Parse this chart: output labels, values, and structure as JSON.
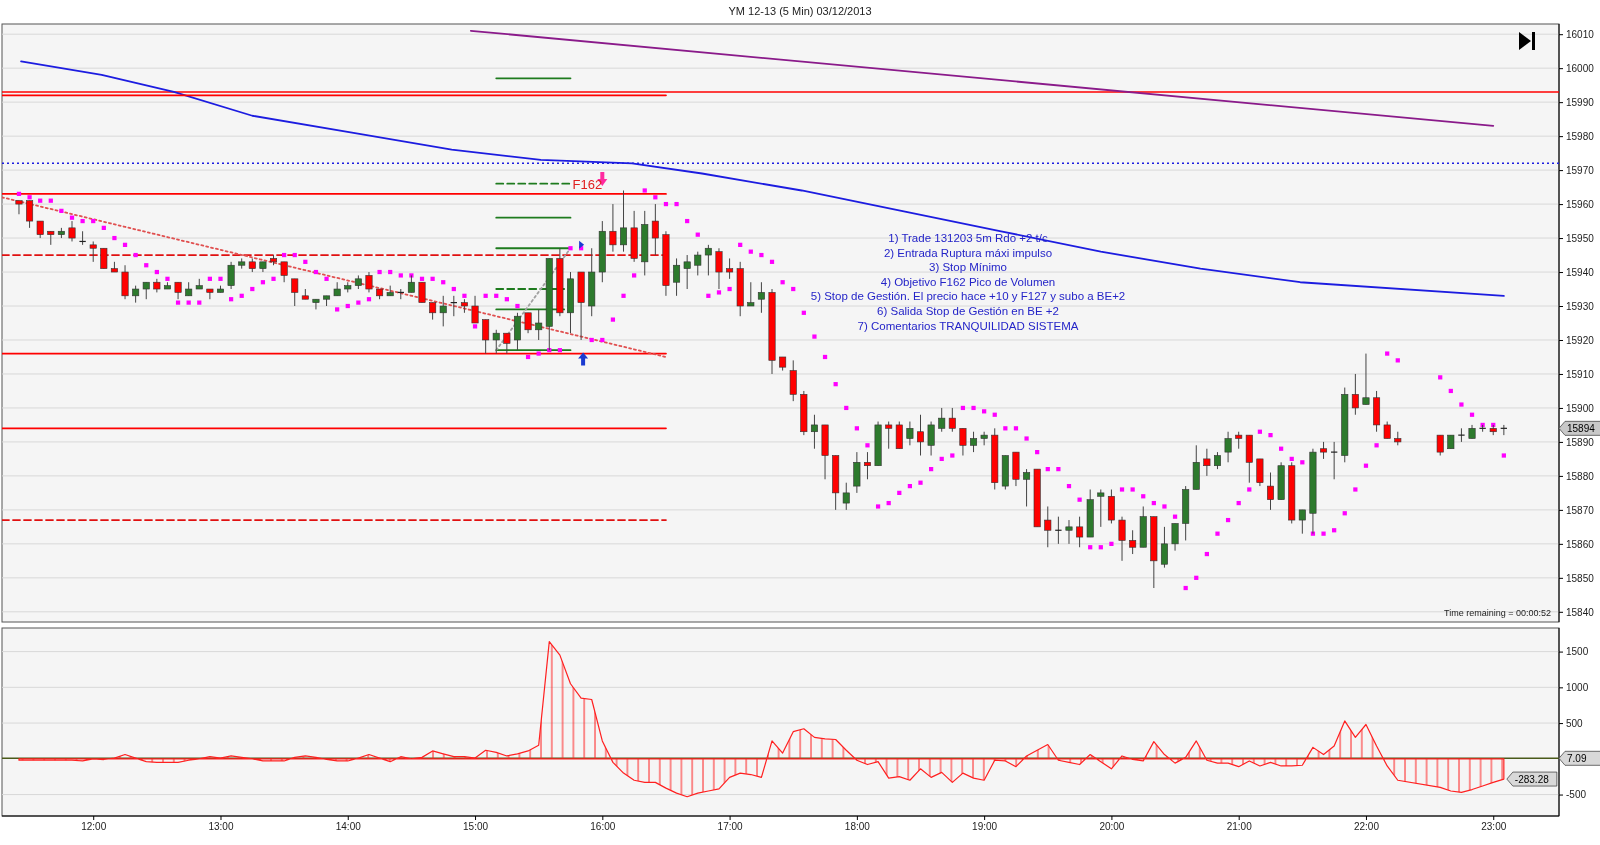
{
  "chart_data": [
    {
      "type": "candlestick",
      "title": "YM 12-13 (5 Min)  03/12/2013",
      "x": [
        "2013-12-03T11:25",
        "2013-12-03T11:30",
        "2013-12-03T11:35",
        "2013-12-03T11:40",
        "2013-12-03T11:45",
        "2013-12-03T11:50",
        "2013-12-03T11:55",
        "2013-12-03T12:00",
        "2013-12-03T12:05",
        "2013-12-03T12:10",
        "2013-12-03T12:15",
        "2013-12-03T12:20",
        "2013-12-03T12:25",
        "2013-12-03T12:30",
        "2013-12-03T12:35",
        "2013-12-03T12:40",
        "2013-12-03T12:45",
        "2013-12-03T12:50",
        "2013-12-03T12:55",
        "2013-12-03T13:00",
        "2013-12-03T13:05",
        "2013-12-03T13:10",
        "2013-12-03T13:15",
        "2013-12-03T13:20",
        "2013-12-03T13:25",
        "2013-12-03T13:30",
        "2013-12-03T13:35",
        "2013-12-03T13:40",
        "2013-12-03T13:45",
        "2013-12-03T13:50",
        "2013-12-03T13:55",
        "2013-12-03T14:00",
        "2013-12-03T14:05",
        "2013-12-03T14:10",
        "2013-12-03T14:15",
        "2013-12-03T14:20",
        "2013-12-03T14:25",
        "2013-12-03T14:30",
        "2013-12-03T14:35",
        "2013-12-03T14:40",
        "2013-12-03T14:45",
        "2013-12-03T14:50",
        "2013-12-03T14:55",
        "2013-12-03T15:00",
        "2013-12-03T15:05",
        "2013-12-03T15:10",
        "2013-12-03T15:15",
        "2013-12-03T15:20",
        "2013-12-03T15:25",
        "2013-12-03T15:30",
        "2013-12-03T15:35",
        "2013-12-03T15:40",
        "2013-12-03T15:45",
        "2013-12-03T15:50",
        "2013-12-03T15:55",
        "2013-12-03T16:00",
        "2013-12-03T16:05",
        "2013-12-03T16:10",
        "2013-12-03T16:15",
        "2013-12-03T16:20",
        "2013-12-03T16:25",
        "2013-12-03T16:30",
        "2013-12-03T16:35",
        "2013-12-03T16:40",
        "2013-12-03T16:45",
        "2013-12-03T16:50",
        "2013-12-03T16:55",
        "2013-12-03T17:00",
        "2013-12-03T17:05",
        "2013-12-03T17:10",
        "2013-12-03T17:15",
        "2013-12-03T17:20",
        "2013-12-03T17:25",
        "2013-12-03T17:30",
        "2013-12-03T17:35",
        "2013-12-03T17:40",
        "2013-12-03T17:45",
        "2013-12-03T17:50",
        "2013-12-03T17:55",
        "2013-12-03T18:00",
        "2013-12-03T18:05",
        "2013-12-03T18:10",
        "2013-12-03T18:15",
        "2013-12-03T18:20",
        "2013-12-03T18:25",
        "2013-12-03T18:30",
        "2013-12-03T18:35",
        "2013-12-03T18:40",
        "2013-12-03T18:45",
        "2013-12-03T18:50",
        "2013-12-03T18:55",
        "2013-12-03T19:00",
        "2013-12-03T19:05",
        "2013-12-03T19:10",
        "2013-12-03T19:15",
        "2013-12-03T19:20",
        "2013-12-03T19:25",
        "2013-12-03T19:30",
        "2013-12-03T19:35",
        "2013-12-03T19:40",
        "2013-12-03T19:45",
        "2013-12-03T19:50",
        "2013-12-03T19:55",
        "2013-12-03T20:00",
        "2013-12-03T20:05",
        "2013-12-03T20:10",
        "2013-12-03T20:15",
        "2013-12-03T20:20",
        "2013-12-03T20:25",
        "2013-12-03T20:30",
        "2013-12-03T20:35",
        "2013-12-03T20:40",
        "2013-12-03T20:45",
        "2013-12-03T20:50",
        "2013-12-03T20:55",
        "2013-12-03T21:00",
        "2013-12-03T21:05",
        "2013-12-03T21:10",
        "2013-12-03T21:15",
        "2013-12-03T21:20",
        "2013-12-03T21:25",
        "2013-12-03T21:30",
        "2013-12-03T21:35",
        "2013-12-03T21:40",
        "2013-12-03T21:45",
        "2013-12-03T21:50",
        "2013-12-03T21:55",
        "2013-12-03T22:00",
        "2013-12-03T22:05",
        "2013-12-03T22:10",
        "2013-12-03T22:15",
        "2013-12-03T22:35",
        "2013-12-03T22:40",
        "2013-12-03T22:45",
        "2013-12-03T22:50",
        "2013-12-03T22:55",
        "2013-12-03T23:00",
        "2013-12-03T23:05"
      ],
      "ohlc": [
        [
          15961,
          15961,
          15957,
          15960
        ],
        [
          15961,
          15961,
          15953,
          15955
        ],
        [
          15955,
          15955,
          15950,
          15951
        ],
        [
          15952,
          15952,
          15948,
          15951
        ],
        [
          15951,
          15953,
          15950,
          15952
        ],
        [
          15953,
          15955,
          15949,
          15950
        ],
        [
          15949,
          15952,
          15948,
          15949
        ],
        [
          15948,
          15949,
          15943,
          15947
        ],
        [
          15947,
          15947,
          15941,
          15941
        ],
        [
          15941,
          15943,
          15940,
          15940
        ],
        [
          15940,
          15942,
          15932,
          15933
        ],
        [
          15933,
          15936,
          15931,
          15935
        ],
        [
          15935,
          15937,
          15932,
          15937
        ],
        [
          15937,
          15938,
          15934,
          15935
        ],
        [
          15935,
          15937,
          15935,
          15936
        ],
        [
          15937,
          15937,
          15932,
          15934
        ],
        [
          15933,
          15937,
          15933,
          15935
        ],
        [
          15935,
          15938,
          15935,
          15936
        ],
        [
          15935,
          15935,
          15932,
          15934
        ],
        [
          15934,
          15936,
          15934,
          15935
        ],
        [
          15936,
          15943,
          15935,
          15942
        ],
        [
          15942,
          15944,
          15941,
          15943
        ],
        [
          15943,
          15944,
          15940,
          15941
        ],
        [
          15941,
          15943,
          15940,
          15943
        ],
        [
          15944,
          15945,
          15942,
          15943
        ],
        [
          15943,
          15943,
          15937,
          15939
        ],
        [
          15938,
          15938,
          15930,
          15934
        ],
        [
          15933,
          15935,
          15932,
          15932
        ],
        [
          15931,
          15932,
          15929,
          15932
        ],
        [
          15932,
          15933,
          15930,
          15933
        ],
        [
          15933,
          15937,
          15933,
          15935
        ],
        [
          15935,
          15937,
          15934,
          15936
        ],
        [
          15936,
          15939,
          15935,
          15938
        ],
        [
          15939,
          15940,
          15934,
          15935
        ],
        [
          15935,
          15935,
          15932,
          15933
        ],
        [
          15933,
          15936,
          15933,
          15934
        ],
        [
          15934,
          15935,
          15932,
          15934
        ],
        [
          15934,
          15939,
          15934,
          15937
        ],
        [
          15937,
          15937,
          15931,
          15931
        ],
        [
          15931,
          15931,
          15926,
          15928
        ],
        [
          15928,
          15933,
          15924,
          15930
        ],
        [
          15931,
          15933,
          15927,
          15931
        ],
        [
          15931,
          15932,
          15928,
          15930
        ],
        [
          15930,
          15933,
          15925,
          15925
        ],
        [
          15926,
          15926,
          15916,
          15920
        ],
        [
          15920,
          15923,
          15916,
          15922
        ],
        [
          15922,
          15922,
          15916,
          15919
        ],
        [
          15920,
          15928,
          15917,
          15927
        ],
        [
          15928,
          15928,
          15922,
          15923
        ],
        [
          15923,
          15929,
          15920,
          15925
        ],
        [
          15924,
          15944,
          15917,
          15944
        ],
        [
          15944,
          15947,
          15927,
          15928
        ],
        [
          15928,
          15940,
          15922,
          15938
        ],
        [
          15940,
          15940,
          15920,
          15931
        ],
        [
          15930,
          15947,
          15927,
          15940
        ],
        [
          15940,
          15955,
          15937,
          15952
        ],
        [
          15952,
          15960,
          15946,
          15948
        ],
        [
          15948,
          15964,
          15946,
          15953
        ],
        [
          15953,
          15958,
          15943,
          15944
        ],
        [
          15943,
          15958,
          15939,
          15954
        ],
        [
          15955,
          15960,
          15945,
          15950
        ],
        [
          15951,
          15952,
          15933,
          15936
        ],
        [
          15937,
          15944,
          15933,
          15942
        ],
        [
          15941,
          15945,
          15935,
          15943
        ],
        [
          15942,
          15946,
          15939,
          15945
        ],
        [
          15945,
          15948,
          15939,
          15947
        ],
        [
          15946,
          15947,
          15935,
          15940
        ],
        [
          15941,
          15944,
          15938,
          15940
        ],
        [
          15941,
          15943,
          15927,
          15930
        ],
        [
          15930,
          15937,
          15930,
          15931
        ],
        [
          15932,
          15937,
          15928,
          15934
        ],
        [
          15934,
          15935,
          15910,
          15914
        ],
        [
          15915,
          15915,
          15911,
          15912
        ],
        [
          15911,
          15914,
          15902,
          15904
        ],
        [
          15904,
          15905,
          15892,
          15893
        ],
        [
          15893,
          15898,
          15888,
          15895
        ],
        [
          15895,
          15895,
          15879,
          15886
        ],
        [
          15886,
          15886,
          15870,
          15875
        ],
        [
          15872,
          15878,
          15870,
          15875
        ],
        [
          15877,
          15887,
          15875,
          15884
        ],
        [
          15884,
          15887,
          15879,
          15883
        ],
        [
          15883,
          15896,
          15883,
          15895
        ],
        [
          15895,
          15896,
          15888,
          15894
        ],
        [
          15895,
          15896,
          15888,
          15888
        ],
        [
          15891,
          15896,
          15889,
          15894
        ],
        [
          15893,
          15898,
          15886,
          15890
        ],
        [
          15889,
          15896,
          15886,
          15895
        ],
        [
          15894,
          15900,
          15893,
          15897
        ],
        [
          15897,
          15900,
          15893,
          15894
        ],
        [
          15894,
          15894,
          15886,
          15889
        ],
        [
          15889,
          15893,
          15887,
          15891
        ],
        [
          15891,
          15893,
          15889,
          15892
        ],
        [
          15892,
          15894,
          15876,
          15878
        ],
        [
          15877,
          15886,
          15876,
          15886
        ],
        [
          15887,
          15887,
          15877,
          15879
        ],
        [
          15879,
          15882,
          15871,
          15881
        ],
        [
          15882,
          15882,
          15865,
          15865
        ],
        [
          15867,
          15871,
          15859,
          15864
        ],
        [
          15864,
          15868,
          15860,
          15864
        ],
        [
          15864,
          15867,
          15860,
          15865
        ],
        [
          15865,
          15868,
          15859,
          15862
        ],
        [
          15862,
          15876,
          15862,
          15873
        ],
        [
          15874,
          15876,
          15865,
          15875
        ],
        [
          15874,
          15876,
          15866,
          15867
        ],
        [
          15867,
          15868,
          15855,
          15861
        ],
        [
          15861,
          15864,
          15857,
          15859
        ],
        [
          15859,
          15871,
          15859,
          15868
        ],
        [
          15868,
          15868,
          15847,
          15855
        ],
        [
          15854,
          15865,
          15853,
          15860
        ],
        [
          15860,
          15866,
          15858,
          15866
        ],
        [
          15866,
          15877,
          15861,
          15876
        ],
        [
          15876,
          15889,
          15876,
          15884
        ],
        [
          15885,
          15888,
          15880,
          15883
        ],
        [
          15883,
          15887,
          15882,
          15886
        ],
        [
          15887,
          15893,
          15884,
          15891
        ],
        [
          15892,
          15893,
          15888,
          15891
        ],
        [
          15892,
          15892,
          15878,
          15884
        ],
        [
          15885,
          15885,
          15877,
          15878
        ],
        [
          15877,
          15881,
          15870,
          15873
        ],
        [
          15873,
          15884,
          15873,
          15883
        ],
        [
          15883,
          15884,
          15866,
          15867
        ],
        [
          15867,
          15870,
          15863,
          15870
        ],
        [
          15869,
          15888,
          15863,
          15887
        ],
        [
          15888,
          15890,
          15885,
          15887
        ],
        [
          15887,
          15890,
          15879,
          15887
        ],
        [
          15886,
          15906,
          15884,
          15904
        ],
        [
          15904,
          15910,
          15898,
          15900
        ],
        [
          15901,
          15916,
          15901,
          15903
        ],
        [
          15903,
          15905,
          15893,
          15895
        ],
        [
          15895,
          15896,
          15891,
          15891
        ],
        [
          15891,
          15893,
          15889,
          15890
        ],
        [
          15892,
          15892,
          15886,
          15887
        ],
        [
          15888,
          15892,
          15888,
          15892
        ],
        [
          15892,
          15894,
          15890,
          15892
        ],
        [
          15891,
          15895,
          15891,
          15894
        ],
        [
          15894,
          15895,
          15893,
          15894
        ],
        [
          15894,
          15895,
          15892,
          15893
        ],
        [
          15894,
          15895,
          15892,
          15894
        ]
      ],
      "xlim": [
        "2013-12-03T11:17",
        "2013-12-03T23:31"
      ],
      "ylim": [
        15837,
        16013
      ],
      "yticks": [
        15840,
        15850,
        15860,
        15870,
        15880,
        15890,
        15900,
        15910,
        15920,
        15930,
        15940,
        15950,
        15960,
        15970,
        15980,
        15990,
        16000,
        16010
      ],
      "grid": "y",
      "tick_labels": "y",
      "series": [
        {
          "type": "line",
          "color": "#1c1ce0",
          "x": [
            "2013-12-03T11:26",
            "2013-12-03T12:04",
            "2013-12-03T12:38",
            "2013-12-03T13:15",
            "2013-12-03T14:02",
            "2013-12-03T14:49",
            "2013-12-03T15:31",
            "2013-12-03T16:14",
            "2013-12-03T16:47",
            "2013-12-03T17:34",
            "2013-12-03T18:21",
            "2013-12-03T19:08",
            "2013-12-03T19:55",
            "2013-12-03T20:42",
            "2013-12-03T21:29",
            "2013-12-03T23:05"
          ],
          "values": [
            16002,
            15998,
            15993,
            15986,
            15981,
            15976,
            15973,
            15972,
            15969,
            15964,
            15958,
            15952,
            15946,
            15941,
            15937,
            15933
          ]
        },
        {
          "type": "line",
          "color": "#8a1a8a",
          "x": [
            "2013-12-03T14:58",
            "2013-12-03T23:00"
          ],
          "values": [
            16011,
            15983
          ]
        },
        {
          "type": "line",
          "color": "#ff0000",
          "x": [
            "2013-12-03T11:17",
            "2013-12-03T16:30"
          ],
          "values": [
            15992,
            15992
          ]
        },
        {
          "type": "line",
          "color": "#ff0000",
          "x": [
            "2013-12-03T11:17",
            "2013-12-03T16:30"
          ],
          "values": [
            15963,
            15963
          ]
        },
        {
          "type": "line",
          "color": "#e01010",
          "line_style": "dashed",
          "x": [
            "2013-12-03T11:17",
            "2013-12-03T16:30"
          ],
          "values": [
            15945,
            15945
          ]
        },
        {
          "type": "line",
          "color": "#ff0000",
          "x": [
            "2013-12-03T11:17",
            "2013-12-03T16:30"
          ],
          "values": [
            15916,
            15916
          ]
        },
        {
          "type": "line",
          "color": "#ff0000",
          "x": [
            "2013-12-03T11:17",
            "2013-12-03T16:30"
          ],
          "values": [
            15894,
            15894
          ]
        },
        {
          "type": "line",
          "color": "#e01010",
          "line_style": "dashed",
          "x": [
            "2013-12-03T11:17",
            "2013-12-03T16:30"
          ],
          "values": [
            15867,
            15867
          ]
        },
        {
          "type": "line",
          "color": "#e05050",
          "line_style": "dotted",
          "x": [
            "2013-12-03T11:17",
            "2013-12-03T16:30"
          ],
          "values": [
            15962,
            15915
          ]
        },
        {
          "type": "line",
          "color": "#1e7b1e",
          "x": [
            "2013-12-03T15:10",
            "2013-12-03T15:45"
          ],
          "values": [
            15997,
            15997
          ]
        },
        {
          "type": "line",
          "color": "#1e7b1e",
          "line_style": "dashed",
          "x": [
            "2013-12-03T15:10",
            "2013-12-03T15:45"
          ],
          "values": [
            15966,
            15966
          ]
        },
        {
          "type": "line",
          "color": "#1e7b1e",
          "x": [
            "2013-12-03T15:10",
            "2013-12-03T15:45"
          ],
          "values": [
            15956,
            15956
          ]
        },
        {
          "type": "line",
          "color": "#1e7b1e",
          "x": [
            "2013-12-03T15:10",
            "2013-12-03T15:45"
          ],
          "values": [
            15947,
            15947
          ]
        },
        {
          "type": "line",
          "color": "#1e7b1e",
          "line_style": "dashed",
          "x": [
            "2013-12-03T15:10",
            "2013-12-03T15:42"
          ],
          "values": [
            15935,
            15935
          ]
        },
        {
          "type": "line",
          "color": "#1e7b1e",
          "x": [
            "2013-12-03T15:10",
            "2013-12-03T15:42"
          ],
          "values": [
            15929,
            15929
          ]
        },
        {
          "type": "line",
          "color": "#1e7b1e",
          "x": [
            "2013-12-03T15:10",
            "2013-12-03T15:45"
          ],
          "values": [
            15917,
            15917
          ]
        },
        {
          "type": "line",
          "color": "#a0a0a0",
          "line_style": "dotted",
          "x": [
            "2013-12-03T15:10",
            "2013-12-03T15:45"
          ],
          "values": [
            15917,
            15947
          ]
        },
        {
          "type": "scatter",
          "color": "#ff00ff",
          "marker": "square",
          "values": [
            15963,
            15962,
            15961,
            15961,
            15958,
            15956,
            15955,
            15955,
            15953,
            15950,
            15948,
            15945,
            15942,
            15940,
            15938,
            15931,
            15931,
            15931,
            15938,
            15938,
            15932,
            15933,
            15935,
            15937,
            15938,
            15945,
            15945,
            15943,
            15940,
            15938,
            15929,
            15930,
            15931,
            15932,
            15940,
            15940,
            15939,
            15939,
            15938,
            15938,
            15937,
            15935,
            15933,
            15924,
            15933,
            15933,
            15932,
            15930,
            15915,
            15916,
            15917,
            15917,
            15947,
            15947,
            15920,
            15920,
            15926,
            15933,
            15939,
            15964,
            15962,
            15960,
            15960,
            15955,
            15951,
            15933,
            15934,
            15935,
            15948,
            15946,
            15945,
            15943,
            15937,
            15935,
            15928,
            15921,
            15915,
            15907,
            15900,
            15894,
            15889,
            15871,
            15872,
            15875,
            15877,
            15878,
            15882,
            15885,
            15886,
            15900,
            15900,
            15899,
            15898,
            15894,
            15894,
            15891,
            15887,
            15882,
            15882,
            15877,
            15873,
            15859,
            15859,
            15860,
            15876,
            15876,
            15874,
            15872,
            15871,
            15868,
            15847,
            15850,
            15857,
            15863,
            15867,
            15872,
            15876,
            15893,
            15892,
            15888,
            15885,
            15884,
            15863,
            15863,
            15864,
            15869,
            15876,
            15883,
            15889,
            15916,
            15914,
            15909,
            15905,
            15901,
            15898,
            15895,
            15895,
            15886
          ]
        }
      ],
      "ref_lines": [
        {
          "axis": "y",
          "value": 15993,
          "color": "#ff0000"
        },
        {
          "axis": "y",
          "value": 15972,
          "color": "#1c1ce0",
          "line_style": "dotted"
        }
      ],
      "annotations": [
        "1) Trade 131203 5m Rdo +2 t/c",
        "2) Entrada Ruptura máxi impulso",
        "3) Stop Mínimo",
        "4) Objetivo F162 Pico de Volumen",
        "5) Stop de Gestión. El precio hace +10 y F127 y subo a BE+2",
        "6) Salida Stop de Gestión en BE +2",
        "7) Comentarios TRANQUILIDAD SISTEMA",
        "Time remaining = 00:00:52",
        {
          "text": "F162",
          "x": "2013-12-03T15:45",
          "y": 15966
        },
        {
          "text": "15894",
          "y": 15894
        }
      ]
    },
    {
      "type": "area",
      "x": [
        "2013-12-03T11:25",
        "2013-12-03T11:30",
        "2013-12-03T11:35",
        "2013-12-03T11:40",
        "2013-12-03T11:45",
        "2013-12-03T11:50",
        "2013-12-03T11:55",
        "2013-12-03T12:00",
        "2013-12-03T12:05",
        "2013-12-03T12:10",
        "2013-12-03T12:15",
        "2013-12-03T12:20",
        "2013-12-03T12:25",
        "2013-12-03T12:30",
        "2013-12-03T12:35",
        "2013-12-03T12:40",
        "2013-12-03T12:45",
        "2013-12-03T12:50",
        "2013-12-03T12:55",
        "2013-12-03T13:00",
        "2013-12-03T13:05",
        "2013-12-03T13:10",
        "2013-12-03T13:15",
        "2013-12-03T13:20",
        "2013-12-03T13:25",
        "2013-12-03T13:30",
        "2013-12-03T13:35",
        "2013-12-03T13:40",
        "2013-12-03T13:45",
        "2013-12-03T13:50",
        "2013-12-03T13:55",
        "2013-12-03T14:00",
        "2013-12-03T14:05",
        "2013-12-03T14:10",
        "2013-12-03T14:15",
        "2013-12-03T14:20",
        "2013-12-03T14:25",
        "2013-12-03T14:30",
        "2013-12-03T14:35",
        "2013-12-03T14:40",
        "2013-12-03T14:45",
        "2013-12-03T14:50",
        "2013-12-03T14:55",
        "2013-12-03T15:00",
        "2013-12-03T15:05",
        "2013-12-03T15:10",
        "2013-12-03T15:15",
        "2013-12-03T15:20",
        "2013-12-03T15:25",
        "2013-12-03T15:30",
        "2013-12-03T15:35",
        "2013-12-03T15:40",
        "2013-12-03T15:45",
        "2013-12-03T15:50",
        "2013-12-03T15:55",
        "2013-12-03T16:00",
        "2013-12-03T16:05",
        "2013-12-03T16:10",
        "2013-12-03T16:15",
        "2013-12-03T16:20",
        "2013-12-03T16:25",
        "2013-12-03T16:30",
        "2013-12-03T16:35",
        "2013-12-03T16:40",
        "2013-12-03T16:45",
        "2013-12-03T16:50",
        "2013-12-03T16:55",
        "2013-12-03T17:00",
        "2013-12-03T17:05",
        "2013-12-03T17:10",
        "2013-12-03T17:15",
        "2013-12-03T17:20",
        "2013-12-03T17:25",
        "2013-12-03T17:30",
        "2013-12-03T17:35",
        "2013-12-03T17:40",
        "2013-12-03T17:45",
        "2013-12-03T17:50",
        "2013-12-03T17:55",
        "2013-12-03T18:00",
        "2013-12-03T18:05",
        "2013-12-03T18:10",
        "2013-12-03T18:15",
        "2013-12-03T18:20",
        "2013-12-03T18:25",
        "2013-12-03T18:30",
        "2013-12-03T18:35",
        "2013-12-03T18:40",
        "2013-12-03T18:45",
        "2013-12-03T18:50",
        "2013-12-03T18:55",
        "2013-12-03T19:00",
        "2013-12-03T19:05",
        "2013-12-03T19:10",
        "2013-12-03T19:15",
        "2013-12-03T19:20",
        "2013-12-03T19:25",
        "2013-12-03T19:30",
        "2013-12-03T19:35",
        "2013-12-03T19:40",
        "2013-12-03T19:45",
        "2013-12-03T19:50",
        "2013-12-03T19:55",
        "2013-12-03T20:00",
        "2013-12-03T20:05",
        "2013-12-03T20:10",
        "2013-12-03T20:15",
        "2013-12-03T20:20",
        "2013-12-03T20:25",
        "2013-12-03T20:30",
        "2013-12-03T20:35",
        "2013-12-03T20:40",
        "2013-12-03T20:45",
        "2013-12-03T20:50",
        "2013-12-03T20:55",
        "2013-12-03T21:00",
        "2013-12-03T21:05",
        "2013-12-03T21:10",
        "2013-12-03T21:15",
        "2013-12-03T21:20",
        "2013-12-03T21:25",
        "2013-12-03T21:30",
        "2013-12-03T21:35",
        "2013-12-03T21:40",
        "2013-12-03T21:45",
        "2013-12-03T21:50",
        "2013-12-03T21:55",
        "2013-12-03T22:00",
        "2013-12-03T22:05",
        "2013-12-03T22:10",
        "2013-12-03T22:15",
        "2013-12-03T22:35",
        "2013-12-03T22:40",
        "2013-12-03T22:45",
        "2013-12-03T22:50",
        "2013-12-03T22:55",
        "2013-12-03T23:00",
        "2013-12-03T23:05"
      ],
      "xlim": [
        "2013-12-03T11:17",
        "2013-12-03T23:31"
      ],
      "xticks": [
        {
          "value": "2013-12-03T12:00",
          "label": "12:00"
        },
        {
          "value": "2013-12-03T13:00",
          "label": "13:00"
        },
        {
          "value": "2013-12-03T14:00",
          "label": "14:00"
        },
        {
          "value": "2013-12-03T15:00",
          "label": "15:00"
        },
        {
          "value": "2013-12-03T16:00",
          "label": "16:00"
        },
        {
          "value": "2013-12-03T17:00",
          "label": "17:00"
        },
        {
          "value": "2013-12-03T18:00",
          "label": "18:00"
        },
        {
          "value": "2013-12-03T19:00",
          "label": "19:00"
        },
        {
          "value": "2013-12-03T20:00",
          "label": "20:00"
        },
        {
          "value": "2013-12-03T21:00",
          "label": "21:00"
        },
        {
          "value": "2013-12-03T22:00",
          "label": "22:00"
        },
        {
          "value": "2013-12-03T23:00",
          "label": "23:00"
        }
      ],
      "ylim": [
        -800,
        1830
      ],
      "yticks": [
        -500,
        500,
        1000,
        1500
      ],
      "grid": "y",
      "series": [
        {
          "color": "#ff2020",
          "values": [
            -20,
            -20,
            -20,
            -20,
            -20,
            -20,
            -30,
            0,
            -10,
            10,
            60,
            10,
            -40,
            -50,
            -50,
            -50,
            -20,
            0,
            30,
            10,
            40,
            20,
            0,
            -30,
            -30,
            -30,
            20,
            40,
            20,
            -10,
            -30,
            -30,
            10,
            60,
            10,
            -40,
            30,
            0,
            20,
            110,
            70,
            30,
            30,
            10,
            120,
            90,
            40,
            70,
            110,
            190,
            1640,
            1450,
            1050,
            850,
            830,
            250,
            -50,
            -200,
            -300,
            -330,
            -330,
            -410,
            -480,
            -530,
            -480,
            -450,
            -420,
            -260,
            -200,
            -220,
            -260,
            250,
            80,
            380,
            420,
            300,
            280,
            270,
            120,
            -20,
            -80,
            -40,
            -270,
            -250,
            -300,
            -140,
            -260,
            -190,
            -330,
            -200,
            -270,
            -300,
            -20,
            -30,
            -110,
            40,
            120,
            200,
            -20,
            -50,
            -80,
            60,
            -40,
            -140,
            40,
            -10,
            -30,
            240,
            60,
            -60,
            20,
            250,
            -20,
            -60,
            -60,
            -110,
            -30,
            -100,
            -50,
            -100,
            -100,
            -90,
            160,
            60,
            180,
            530,
            300,
            480,
            180,
            -100,
            -300,
            -400,
            -450,
            -470,
            -430,
            -380,
            -330,
            -283.28
          ],
          "value_labels": [
            null,
            null,
            null,
            null,
            null,
            null,
            null,
            null,
            null,
            null,
            null,
            null,
            null,
            null,
            null,
            null,
            null,
            null,
            null,
            null,
            null,
            null,
            null,
            null,
            null,
            null,
            null,
            null,
            null,
            null,
            null,
            null,
            null,
            null,
            null,
            null,
            null,
            null,
            null,
            null,
            null,
            null,
            null,
            null,
            null,
            null,
            null,
            null,
            null,
            null,
            null,
            null,
            null,
            null,
            null,
            null,
            null,
            null,
            null,
            null,
            null,
            null,
            null,
            null,
            null,
            null,
            null,
            null,
            null,
            null,
            null,
            null,
            null,
            null,
            null,
            null,
            null,
            null,
            null,
            null,
            null,
            null,
            null,
            null,
            null,
            null,
            null,
            null,
            null,
            null,
            null,
            null,
            null,
            null,
            null,
            null,
            null,
            null,
            null,
            null,
            null,
            null,
            null,
            null,
            null,
            null,
            null,
            null,
            null,
            null,
            null,
            null,
            null,
            null,
            null,
            null,
            null,
            null,
            null,
            null,
            null,
            null,
            null,
            null,
            null,
            null,
            null,
            null,
            null,
            null,
            null,
            null,
            null,
            null,
            null,
            null,
            null,
            "-283.28"
          ]
        }
      ],
      "ref_lines": [
        {
          "axis": "y",
          "value": 7.09,
          "label": "7.09",
          "color": "#4a5a1a"
        }
      ]
    }
  ]
}
